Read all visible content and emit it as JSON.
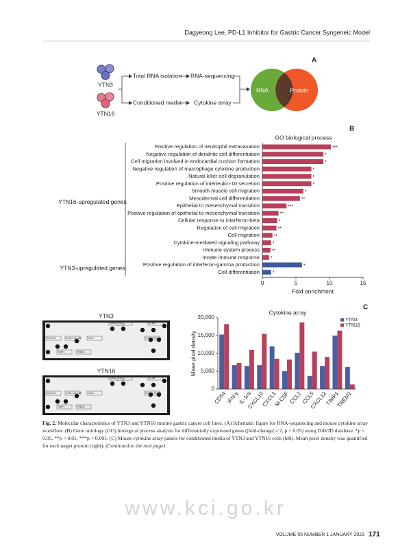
{
  "header": {
    "running_title": "Dagyeong Lee, PD-L1 Inhibitor for Gastric Cancer Syngeneic Model"
  },
  "panel_a": {
    "letter": "A",
    "cell_lines": [
      "YTN3",
      "YTN16"
    ],
    "steps_top": [
      "Total RNA isolation",
      "RNA-sequencing"
    ],
    "steps_bottom": [
      "Conditioned media",
      "Cytokine array"
    ],
    "venn": [
      "RNA",
      "Protein"
    ]
  },
  "array_panel": {
    "panels": [
      "YTN3",
      "YTN16"
    ],
    "spot_labels": [
      "CD54",
      "IFN-γ",
      "IL-1ra",
      "CXCL10",
      "CXCL1 M-CSF",
      "CCL2",
      "CCL5 CXCL12",
      "TIMP1",
      "TREM1"
    ]
  },
  "chart_data": [
    {
      "type": "hbar",
      "letter": "B",
      "title": "GO biological process",
      "x_label": "Fold enrichment",
      "xlim": [
        0,
        15
      ],
      "xticks": [
        0,
        5,
        10,
        15
      ],
      "groups": [
        {
          "label": "YTN16-upregulated genes",
          "color": "#b8405a",
          "categories": [
            "Positive regulation of neutrophil extravasation",
            "Negative regulation of dendritic cell differentiation",
            "Cell migration involved in endocardial cushion formation",
            "Negative regulation of macrophage cytokine production",
            "Natural killer cell degranulation",
            "Positive regulation of interleukin-10 secretion",
            "Smooth muscle cell migration",
            "Mesodermal cell differentiation",
            "Epithelial to mesenchymal transition",
            "Positive regulation of epithelial to mesenchymal transition",
            "Cellular response to interferon-beta",
            "Regulation of cell migration",
            "Cell migration",
            "Cytokine-mediated signaling pathway",
            "Immune system process",
            "Innate immune response"
          ],
          "values": [
            10.2,
            9.1,
            9.1,
            7.3,
            7.3,
            7.3,
            6.1,
            5.6,
            3.6,
            2.4,
            2.2,
            2.1,
            1.5,
            1.3,
            1.2,
            1.0
          ],
          "significance": [
            "***",
            "*",
            "*",
            "*",
            "*",
            "*",
            "*",
            "**",
            "***",
            "**",
            "*",
            "**",
            "**",
            "*",
            "**",
            "*"
          ]
        },
        {
          "label": "YTN3-upregulated genes",
          "color": "#3a5a9c",
          "categories": [
            "Positive regulation of interferon-gamma production",
            "Cell differentiation"
          ],
          "values": [
            5.9,
            1.3
          ],
          "significance": [
            "*",
            "*"
          ]
        }
      ]
    },
    {
      "type": "grouped_bar",
      "letter": "C",
      "title": "Cytokine array",
      "y_label": "Mean pixel density",
      "categories": [
        "CD54",
        "IFN-γ",
        "IL-1ra",
        "CXCL10",
        "CXCL1",
        "M-CSF",
        "CCL2",
        "CCL5",
        "CXCL12",
        "TIMP1",
        "TREM1"
      ],
      "ylim": [
        0,
        20000
      ],
      "yticks": [
        0,
        {
          "value": 5000,
          "label": "5,000"
        },
        {
          "value": 10000,
          "label": "10,000"
        },
        {
          "value": 15000,
          "label": "15,000"
        },
        {
          "value": 20000,
          "label": "20,000"
        }
      ],
      "legend": "top-right",
      "series": [
        {
          "name": "YTN3",
          "color": "#4a5fa0",
          "values": [
            15300,
            6700,
            6500,
            6700,
            12000,
            5000,
            10200,
            3700,
            6500,
            15000,
            6200
          ]
        },
        {
          "name": "YTN16",
          "color": "#b8405a",
          "values": [
            18200,
            7300,
            11000,
            15500,
            8500,
            8300,
            18700,
            10500,
            9000,
            16400,
            1300
          ]
        }
      ]
    }
  ],
  "caption": {
    "label": "Fig. 2.",
    "text": "Molecular characteristics of YTN3 and YTN16 murine gastric cancer cell lines. (A) Schematic figure for RNA-sequencing and mouse cytokine array workflow. (B) Gene ontology (GO) biological process analysis for differentially expressed genes (|fold-change| ≥ 2, p < 0.05) using DAVID database. *p < 0.05, **p < 0.01, ***p < 0.001. (C) Mouse cytokine array panels for conditioned media of YTN3 and YTN16 cells (left). Mean pixel density was quantified for each target protein (right).",
    "continued": "(Continued to the next page)"
  },
  "footer": {
    "watermark": "www.kci.go.kr",
    "issue": "VOLUME 55 NUMBER 1 JANUARY 2023",
    "page": "171"
  }
}
